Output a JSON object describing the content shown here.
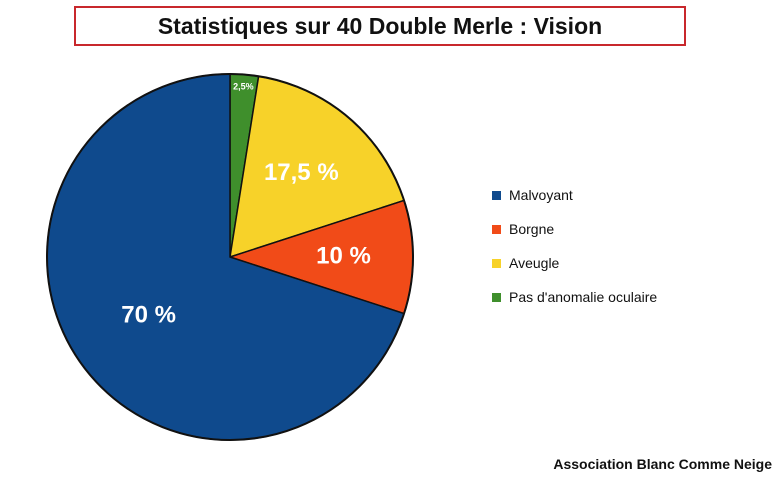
{
  "chart_data": {
    "type": "pie",
    "title": "Statistiques sur 40 Double Merle : Vision",
    "categories": [
      "Pas d'anomalie oculaire",
      "Aveugle",
      "Borgne",
      "Malvoyant"
    ],
    "values": [
      2.5,
      17.5,
      10,
      70
    ],
    "labels": [
      "2,5%",
      "17,5 %",
      "10 %",
      "70 %"
    ],
    "colors": [
      "#3f8f2c",
      "#f7d229",
      "#f14b18",
      "#0f4a8d"
    ],
    "legend": {
      "placement": "right",
      "entries": [
        {
          "label": "Malvoyant",
          "color": "#0f4a8d"
        },
        {
          "label": "Borgne",
          "color": "#f14b18"
        },
        {
          "label": "Aveugle",
          "color": "#f7d229"
        },
        {
          "label": "Pas d'anomalie oculaire",
          "color": "#3f8f2c"
        }
      ]
    }
  },
  "footer": "Association Blanc Comme Neige"
}
